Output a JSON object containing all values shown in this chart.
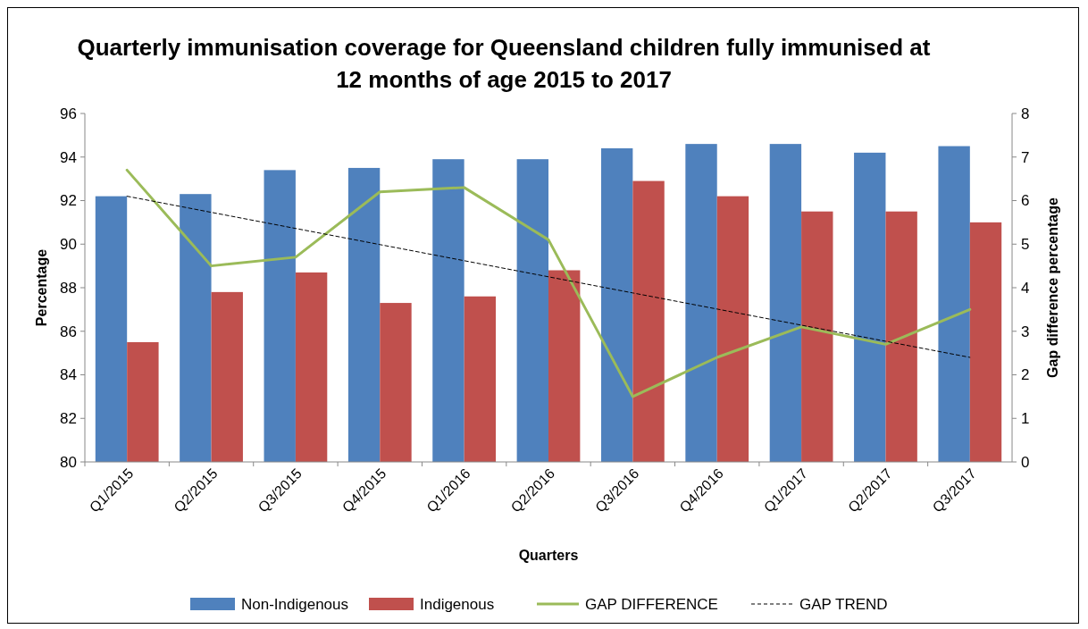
{
  "chart_data": {
    "type": "bar",
    "title": "Quarterly immunisation coverage for Queensland children fully immunised at 12 months of age 2015 to 2017",
    "xlabel": "Quarters",
    "ylabel": "Percentage",
    "y2label": "Gap difference percentage",
    "categories": [
      "Q1/2015",
      "Q2/2015",
      "Q3/2015",
      "Q4/2015",
      "Q1/2016",
      "Q2/2016",
      "Q3/2016",
      "Q4/2016",
      "Q1/2017",
      "Q2/2017",
      "Q3/2017"
    ],
    "series": [
      {
        "name": "Non-Indigenous",
        "color": "#4f81bd",
        "values": [
          92.2,
          92.3,
          93.4,
          93.5,
          93.9,
          93.9,
          94.4,
          94.6,
          94.6,
          94.2,
          94.5
        ]
      },
      {
        "name": "Indigenous",
        "color": "#c0504d",
        "values": [
          85.5,
          87.8,
          88.7,
          87.3,
          87.6,
          88.8,
          92.9,
          92.2,
          91.5,
          91.5,
          91.0
        ]
      },
      {
        "name": "GAP DIFFERENCE",
        "type": "line",
        "axis": "y2",
        "color": "#9bbb59",
        "line_style": "solid",
        "values": [
          6.7,
          4.5,
          4.7,
          6.2,
          6.3,
          5.1,
          1.5,
          2.4,
          3.1,
          2.7,
          3.5
        ]
      },
      {
        "name": "GAP TREND",
        "type": "line",
        "axis": "y2",
        "color": "#000000",
        "line_style": "dashed",
        "values": [
          6.1,
          5.73,
          5.36,
          4.99,
          4.62,
          4.25,
          3.88,
          3.51,
          3.14,
          2.77,
          2.4
        ]
      }
    ],
    "ylim": [
      80,
      96
    ],
    "yticks": [
      80,
      82,
      84,
      86,
      88,
      90,
      92,
      94,
      96
    ],
    "y2lim": [
      0,
      8
    ],
    "y2ticks": [
      0,
      1,
      2,
      3,
      4,
      5,
      6,
      7,
      8
    ],
    "legend": "bottom",
    "marker": "none",
    "grid": false
  }
}
